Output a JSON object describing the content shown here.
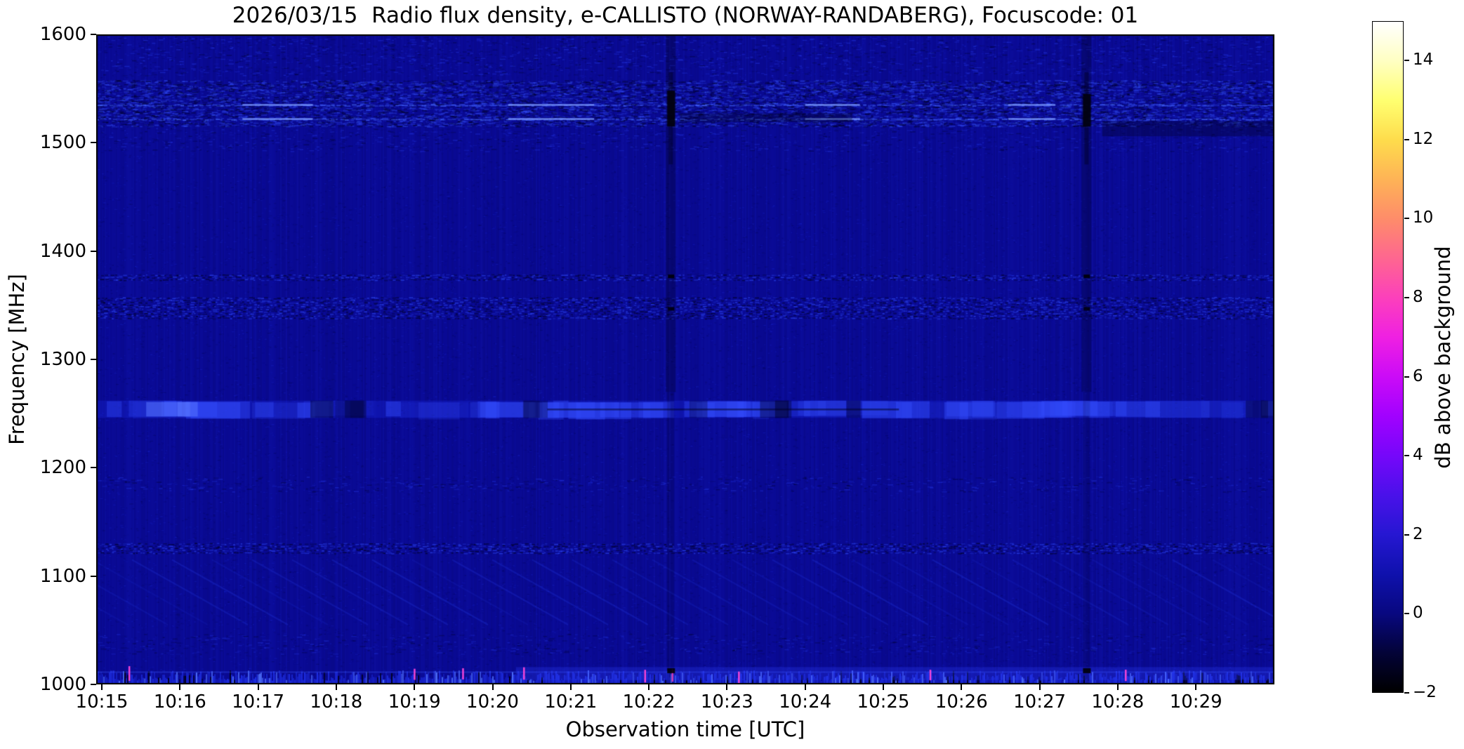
{
  "title": "2026/03/15  Radio flux density, e-CALLISTO (NORWAY-RANDABERG), Focuscode: 01",
  "axes": {
    "xlabel": "Observation time [UTC]",
    "ylabel": "Frequency [MHz]",
    "x_ticks": [
      "10:15",
      "10:16",
      "10:17",
      "10:18",
      "10:19",
      "10:20",
      "10:21",
      "10:22",
      "10:23",
      "10:24",
      "10:25",
      "10:26",
      "10:27",
      "10:28",
      "10:29"
    ],
    "y_ticks": [
      1600,
      1500,
      1400,
      1300,
      1200,
      1100,
      1000
    ],
    "x_range": [
      "10:15:00",
      "10:30:03"
    ],
    "y_range": [
      1000,
      1600
    ]
  },
  "colorbar": {
    "label": "dB above background",
    "ticks": [
      14,
      12,
      10,
      8,
      6,
      4,
      2,
      0,
      -2
    ],
    "range": [
      -2,
      15
    ],
    "gradient": [
      {
        "v": 15,
        "c": "#ffffff"
      },
      {
        "v": 14,
        "c": "#ffffc2"
      },
      {
        "v": 13,
        "c": "#ffff70"
      },
      {
        "v": 12,
        "c": "#fedc4c"
      },
      {
        "v": 11,
        "c": "#feb356"
      },
      {
        "v": 10,
        "c": "#fe8c6a"
      },
      {
        "v": 9,
        "c": "#fe6690"
      },
      {
        "v": 8,
        "c": "#fc40bb"
      },
      {
        "v": 7,
        "c": "#ef20e2"
      },
      {
        "v": 6,
        "c": "#cb0bf7"
      },
      {
        "v": 5,
        "c": "#a101ff"
      },
      {
        "v": 4,
        "c": "#7607fa"
      },
      {
        "v": 3,
        "c": "#4a11ea"
      },
      {
        "v": 2,
        "c": "#2617d2"
      },
      {
        "v": 1,
        "c": "#0f11ad"
      },
      {
        "v": 0,
        "c": "#080880"
      },
      {
        "v": -1,
        "c": "#030338"
      },
      {
        "v": -2,
        "c": "#000000"
      }
    ]
  },
  "chart_data": {
    "type": "heatmap",
    "title": "2026/03/15  Radio flux density, e-CALLISTO (NORWAY-RANDABERG), Focuscode: 01",
    "station": "NORWAY-RANDABERG",
    "date": "2026/03/15",
    "focuscode": "01",
    "xlabel": "Observation time [UTC]",
    "ylabel": "Frequency [MHz]",
    "x_ticks": [
      "10:15",
      "10:16",
      "10:17",
      "10:18",
      "10:19",
      "10:20",
      "10:21",
      "10:22",
      "10:23",
      "10:24",
      "10:25",
      "10:26",
      "10:27",
      "10:28",
      "10:29"
    ],
    "xlim_minutes_after_1015": [
      0,
      15.05
    ],
    "ylim": [
      1000,
      1600
    ],
    "clim_db": [
      -2,
      15
    ],
    "colormap": "black-blue-violet-magenta-pink-orange-yellow-white (gnuplot2-like)",
    "background_level_db": 0.3,
    "background_color": "#0a0a94",
    "bands": [
      {
        "freq_mhz": [
          1562,
          1598
        ],
        "style": "sparse_speckle",
        "level_db": 1.0
      },
      {
        "freq_mhz": [
          1515,
          1558
        ],
        "style": "dense_speckle",
        "level_db": 1.8,
        "bright_lines_mhz": [
          1535,
          1522
        ],
        "bright_segments_min": [
          [
            1.8,
            2.7
          ],
          [
            5.2,
            6.3
          ],
          [
            9.0,
            9.7
          ],
          [
            11.6,
            12.2
          ]
        ]
      },
      {
        "freq_mhz": [
          1492,
          1514
        ],
        "style": "sparse_speckle",
        "level_db": 0.8
      },
      {
        "freq_mhz": [
          1519,
          1527
        ],
        "style": "dark_patch",
        "t_min": [
          7.4,
          9.6
        ],
        "level_db": -0.8
      },
      {
        "freq_mhz": [
          1506,
          1520
        ],
        "style": "dark_patch",
        "t_min": [
          12.8,
          15.05
        ],
        "level_db": -0.8
      },
      {
        "freq_mhz": [
          1373,
          1378
        ],
        "style": "dotted_line",
        "level_db": 1.4
      },
      {
        "freq_mhz": [
          1338,
          1357
        ],
        "style": "dotted_line",
        "level_db": 1.5
      },
      {
        "freq_mhz": [
          1246,
          1262
        ],
        "style": "bright_blotches",
        "level_db": 2.6,
        "dark_core_t_min": [
          5.7,
          10.2
        ]
      },
      {
        "freq_mhz": [
          1178,
          1192
        ],
        "style": "sparse_speckle",
        "level_db": 0.9
      },
      {
        "freq_mhz": [
          1120,
          1130
        ],
        "style": "dotted_line",
        "level_db": 1.4
      },
      {
        "freq_mhz": [
          1055,
          1115
        ],
        "style": "diagonal_stripes",
        "level_db": 1.0
      },
      {
        "freq_mhz": [
          1028,
          1047
        ],
        "style": "sparse_speckle",
        "level_db": 0.8
      },
      {
        "freq_mhz": [
          998,
          1022
        ],
        "style": "noisy_burst_row",
        "level_db": 3.2,
        "pink_spike_t_min": [
          0.35,
          4.0,
          4.62,
          5.4,
          6.95,
          7.3,
          8.15,
          10.6,
          13.1
        ]
      }
    ],
    "interference_columns": [
      {
        "time": "10:22:17",
        "t_min": 7.28,
        "dark_blob_mhz": [
          1515,
          1548
        ]
      },
      {
        "time": "10:27:36",
        "t_min": 12.6,
        "dark_blob_mhz": [
          1515,
          1545
        ]
      }
    ]
  }
}
